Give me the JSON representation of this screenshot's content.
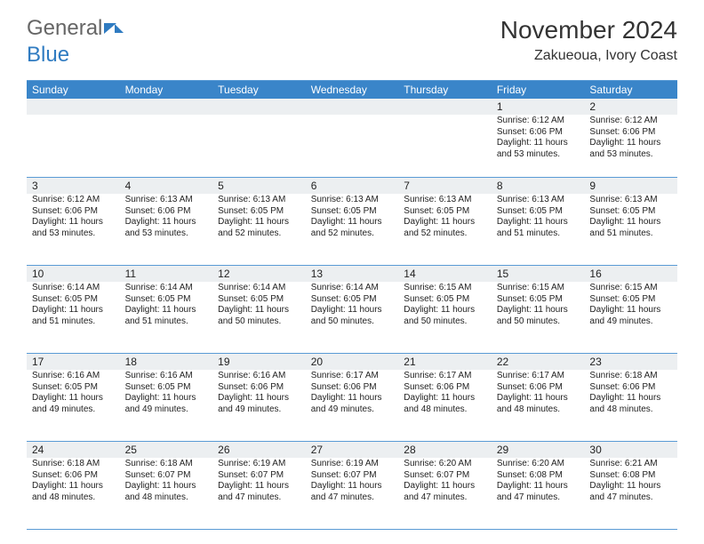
{
  "logo": {
    "text1": "General",
    "text2": "Blue"
  },
  "title": "November 2024",
  "subtitle": "Zakueoua, Ivory Coast",
  "day_names": [
    "Sunday",
    "Monday",
    "Tuesday",
    "Wednesday",
    "Thursday",
    "Friday",
    "Saturday"
  ],
  "colors": {
    "header_bg": "#3a85c9",
    "header_text": "#ffffff",
    "rule": "#5a9bd5",
    "daynum_bg": "#eceff1",
    "text": "#222222",
    "logo_gray": "#666666",
    "logo_blue": "#2f7bc1"
  },
  "weeks": [
    {
      "nums": [
        "",
        "",
        "",
        "",
        "",
        "1",
        "2"
      ],
      "cells": [
        null,
        null,
        null,
        null,
        null,
        {
          "sr": "Sunrise: 6:12 AM",
          "ss": "Sunset: 6:06 PM",
          "d1": "Daylight: 11 hours",
          "d2": "and 53 minutes."
        },
        {
          "sr": "Sunrise: 6:12 AM",
          "ss": "Sunset: 6:06 PM",
          "d1": "Daylight: 11 hours",
          "d2": "and 53 minutes."
        }
      ]
    },
    {
      "nums": [
        "3",
        "4",
        "5",
        "6",
        "7",
        "8",
        "9"
      ],
      "cells": [
        {
          "sr": "Sunrise: 6:12 AM",
          "ss": "Sunset: 6:06 PM",
          "d1": "Daylight: 11 hours",
          "d2": "and 53 minutes."
        },
        {
          "sr": "Sunrise: 6:13 AM",
          "ss": "Sunset: 6:06 PM",
          "d1": "Daylight: 11 hours",
          "d2": "and 53 minutes."
        },
        {
          "sr": "Sunrise: 6:13 AM",
          "ss": "Sunset: 6:05 PM",
          "d1": "Daylight: 11 hours",
          "d2": "and 52 minutes."
        },
        {
          "sr": "Sunrise: 6:13 AM",
          "ss": "Sunset: 6:05 PM",
          "d1": "Daylight: 11 hours",
          "d2": "and 52 minutes."
        },
        {
          "sr": "Sunrise: 6:13 AM",
          "ss": "Sunset: 6:05 PM",
          "d1": "Daylight: 11 hours",
          "d2": "and 52 minutes."
        },
        {
          "sr": "Sunrise: 6:13 AM",
          "ss": "Sunset: 6:05 PM",
          "d1": "Daylight: 11 hours",
          "d2": "and 51 minutes."
        },
        {
          "sr": "Sunrise: 6:13 AM",
          "ss": "Sunset: 6:05 PM",
          "d1": "Daylight: 11 hours",
          "d2": "and 51 minutes."
        }
      ]
    },
    {
      "nums": [
        "10",
        "11",
        "12",
        "13",
        "14",
        "15",
        "16"
      ],
      "cells": [
        {
          "sr": "Sunrise: 6:14 AM",
          "ss": "Sunset: 6:05 PM",
          "d1": "Daylight: 11 hours",
          "d2": "and 51 minutes."
        },
        {
          "sr": "Sunrise: 6:14 AM",
          "ss": "Sunset: 6:05 PM",
          "d1": "Daylight: 11 hours",
          "d2": "and 51 minutes."
        },
        {
          "sr": "Sunrise: 6:14 AM",
          "ss": "Sunset: 6:05 PM",
          "d1": "Daylight: 11 hours",
          "d2": "and 50 minutes."
        },
        {
          "sr": "Sunrise: 6:14 AM",
          "ss": "Sunset: 6:05 PM",
          "d1": "Daylight: 11 hours",
          "d2": "and 50 minutes."
        },
        {
          "sr": "Sunrise: 6:15 AM",
          "ss": "Sunset: 6:05 PM",
          "d1": "Daylight: 11 hours",
          "d2": "and 50 minutes."
        },
        {
          "sr": "Sunrise: 6:15 AM",
          "ss": "Sunset: 6:05 PM",
          "d1": "Daylight: 11 hours",
          "d2": "and 50 minutes."
        },
        {
          "sr": "Sunrise: 6:15 AM",
          "ss": "Sunset: 6:05 PM",
          "d1": "Daylight: 11 hours",
          "d2": "and 49 minutes."
        }
      ]
    },
    {
      "nums": [
        "17",
        "18",
        "19",
        "20",
        "21",
        "22",
        "23"
      ],
      "cells": [
        {
          "sr": "Sunrise: 6:16 AM",
          "ss": "Sunset: 6:05 PM",
          "d1": "Daylight: 11 hours",
          "d2": "and 49 minutes."
        },
        {
          "sr": "Sunrise: 6:16 AM",
          "ss": "Sunset: 6:05 PM",
          "d1": "Daylight: 11 hours",
          "d2": "and 49 minutes."
        },
        {
          "sr": "Sunrise: 6:16 AM",
          "ss": "Sunset: 6:06 PM",
          "d1": "Daylight: 11 hours",
          "d2": "and 49 minutes."
        },
        {
          "sr": "Sunrise: 6:17 AM",
          "ss": "Sunset: 6:06 PM",
          "d1": "Daylight: 11 hours",
          "d2": "and 49 minutes."
        },
        {
          "sr": "Sunrise: 6:17 AM",
          "ss": "Sunset: 6:06 PM",
          "d1": "Daylight: 11 hours",
          "d2": "and 48 minutes."
        },
        {
          "sr": "Sunrise: 6:17 AM",
          "ss": "Sunset: 6:06 PM",
          "d1": "Daylight: 11 hours",
          "d2": "and 48 minutes."
        },
        {
          "sr": "Sunrise: 6:18 AM",
          "ss": "Sunset: 6:06 PM",
          "d1": "Daylight: 11 hours",
          "d2": "and 48 minutes."
        }
      ]
    },
    {
      "nums": [
        "24",
        "25",
        "26",
        "27",
        "28",
        "29",
        "30"
      ],
      "cells": [
        {
          "sr": "Sunrise: 6:18 AM",
          "ss": "Sunset: 6:06 PM",
          "d1": "Daylight: 11 hours",
          "d2": "and 48 minutes."
        },
        {
          "sr": "Sunrise: 6:18 AM",
          "ss": "Sunset: 6:07 PM",
          "d1": "Daylight: 11 hours",
          "d2": "and 48 minutes."
        },
        {
          "sr": "Sunrise: 6:19 AM",
          "ss": "Sunset: 6:07 PM",
          "d1": "Daylight: 11 hours",
          "d2": "and 47 minutes."
        },
        {
          "sr": "Sunrise: 6:19 AM",
          "ss": "Sunset: 6:07 PM",
          "d1": "Daylight: 11 hours",
          "d2": "and 47 minutes."
        },
        {
          "sr": "Sunrise: 6:20 AM",
          "ss": "Sunset: 6:07 PM",
          "d1": "Daylight: 11 hours",
          "d2": "and 47 minutes."
        },
        {
          "sr": "Sunrise: 6:20 AM",
          "ss": "Sunset: 6:08 PM",
          "d1": "Daylight: 11 hours",
          "d2": "and 47 minutes."
        },
        {
          "sr": "Sunrise: 6:21 AM",
          "ss": "Sunset: 6:08 PM",
          "d1": "Daylight: 11 hours",
          "d2": "and 47 minutes."
        }
      ]
    }
  ]
}
